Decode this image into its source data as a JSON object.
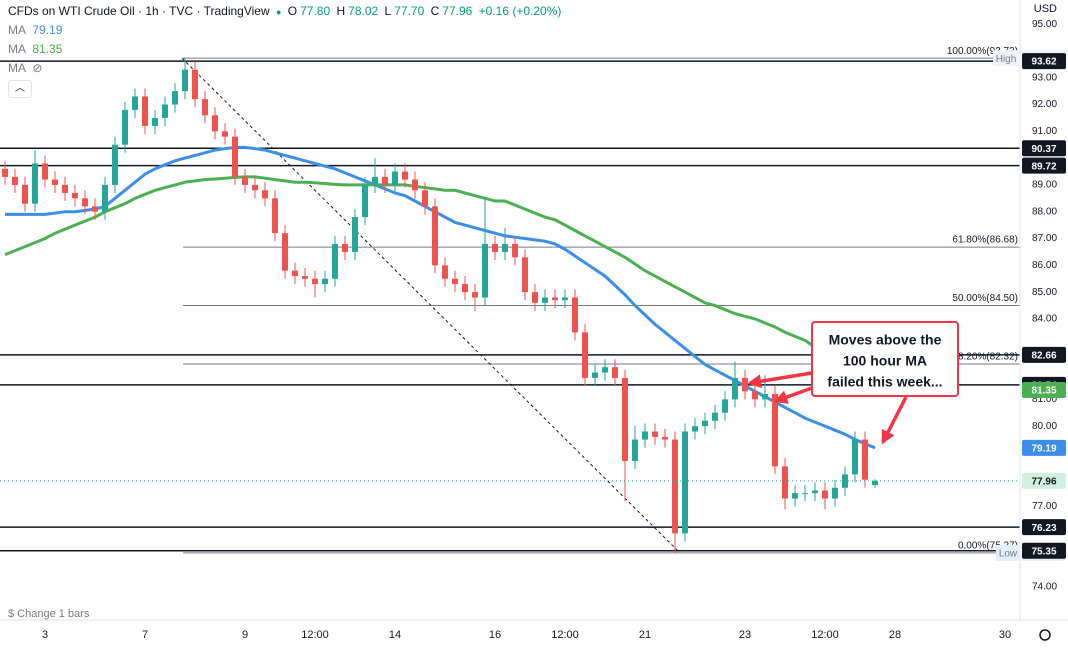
{
  "header": {
    "title": "CFDs on WTI Crude Oil · 1h · TVC · TradingView",
    "o_label": "O",
    "o": "77.80",
    "h_label": "H",
    "h": "78.02",
    "l_label": "L",
    "l": "77.70",
    "c_label": "C",
    "c": "77.96",
    "change": "+0.16 (+0.20%)"
  },
  "currency": "USD",
  "footer": "$ Change 1 bars",
  "chart_data": {
    "type": "candlestick",
    "categories": [
      null,
      null,
      null,
      null,
      "3",
      null,
      null,
      null,
      null,
      null,
      null,
      null,
      null,
      null,
      "7",
      null,
      null,
      null,
      null,
      null,
      null,
      null,
      null,
      null,
      "9",
      null,
      null,
      null,
      null,
      null,
      null,
      "12:00",
      null,
      null,
      null,
      null,
      null,
      null,
      null,
      "14",
      null,
      null,
      null,
      null,
      null,
      null,
      null,
      null,
      null,
      "16",
      null,
      null,
      null,
      null,
      null,
      null,
      "12:00",
      null,
      null,
      null,
      null,
      null,
      null,
      null,
      "21",
      null,
      null,
      null,
      null,
      null,
      null,
      null,
      null,
      null,
      "23",
      null,
      null,
      null,
      null,
      null,
      null,
      null,
      "12:00",
      null,
      null,
      null,
      null,
      null,
      null,
      "28",
      null,
      null,
      null,
      null,
      null,
      null,
      null,
      null,
      null,
      null,
      "30",
      null
    ],
    "open": [
      89.6,
      89.3,
      89.0,
      88.3,
      89.8,
      89.2,
      89.0,
      88.7,
      88.5,
      88.2,
      88.0,
      89.0,
      90.5,
      91.8,
      92.3,
      91.2,
      91.5,
      92.0,
      92.5,
      93.3,
      92.2,
      91.6,
      91.0,
      90.8,
      89.3,
      89.0,
      88.8,
      88.5,
      87.2,
      85.8,
      85.6,
      85.5,
      85.3,
      85.5,
      86.8,
      86.5,
      87.8,
      89.0,
      89.3,
      89.0,
      89.5,
      89.2,
      88.8,
      88.2,
      86.0,
      85.5,
      85.3,
      85.0,
      84.8,
      86.8,
      86.5,
      86.8,
      86.3,
      85.0,
      84.6,
      84.8,
      84.7,
      84.8,
      83.5,
      81.8,
      82.0,
      82.2,
      81.8,
      78.7,
      79.5,
      79.8,
      79.6,
      79.5,
      76.0,
      79.8,
      80.0,
      80.2,
      80.5,
      81.0,
      81.8,
      81.3,
      81.0,
      81.2,
      78.5,
      77.3,
      77.5,
      77.5,
      77.6,
      77.3,
      77.7,
      78.2,
      79.5,
      77.8,
      null,
      null,
      null,
      null,
      null,
      null,
      null,
      null,
      null,
      null,
      null,
      null,
      null,
      null
    ],
    "high": [
      89.9,
      89.6,
      89.3,
      90.3,
      90.1,
      89.5,
      89.3,
      89.0,
      88.8,
      88.5,
      89.3,
      90.8,
      92.1,
      92.6,
      92.6,
      91.8,
      92.3,
      92.8,
      93.73,
      93.6,
      92.5,
      91.9,
      91.3,
      91.1,
      89.6,
      89.3,
      89.1,
      88.8,
      87.5,
      86.1,
      85.9,
      85.8,
      85.8,
      87.1,
      87.1,
      88.1,
      89.3,
      90.0,
      89.6,
      89.8,
      89.8,
      89.5,
      89.1,
      88.5,
      86.3,
      85.8,
      85.6,
      85.3,
      88.5,
      87.1,
      87.4,
      87.1,
      86.6,
      85.3,
      85.1,
      85.1,
      85.1,
      85.1,
      83.8,
      82.3,
      82.5,
      82.5,
      82.1,
      80.0,
      80.1,
      80.1,
      79.9,
      79.8,
      80.1,
      80.3,
      80.5,
      80.8,
      81.3,
      82.4,
      82.1,
      81.6,
      81.9,
      81.5,
      78.8,
      77.8,
      77.8,
      77.9,
      77.9,
      78.0,
      78.5,
      79.8,
      79.8,
      78.02,
      null,
      null,
      null,
      null,
      null,
      null,
      null,
      null,
      null,
      null,
      null,
      null,
      null,
      null
    ],
    "low": [
      89.0,
      88.7,
      88.0,
      88.0,
      88.9,
      88.7,
      88.4,
      88.2,
      87.9,
      87.7,
      87.7,
      88.7,
      90.2,
      91.5,
      90.9,
      90.9,
      91.2,
      91.7,
      92.2,
      91.9,
      91.3,
      90.7,
      90.5,
      89.0,
      88.7,
      88.5,
      88.2,
      86.9,
      85.5,
      85.3,
      85.2,
      84.8,
      85.0,
      85.2,
      86.2,
      86.2,
      87.5,
      88.7,
      88.7,
      88.7,
      88.9,
      88.5,
      87.9,
      85.7,
      85.2,
      85.0,
      84.7,
      84.3,
      84.5,
      86.2,
      86.2,
      86.0,
      84.7,
      84.3,
      84.3,
      84.4,
      84.4,
      83.2,
      81.5,
      81.5,
      81.7,
      81.5,
      77.2,
      78.4,
      79.2,
      79.3,
      79.2,
      75.27,
      75.7,
      79.5,
      79.7,
      79.9,
      80.2,
      80.7,
      81.0,
      80.7,
      80.7,
      78.2,
      76.9,
      77.0,
      77.2,
      77.2,
      76.9,
      77.0,
      77.4,
      77.9,
      77.7,
      77.7,
      null,
      null,
      null,
      null,
      null,
      null,
      null,
      null,
      null,
      null,
      null,
      null,
      null,
      null
    ],
    "close": [
      89.3,
      89.0,
      88.3,
      89.8,
      89.2,
      89.0,
      88.7,
      88.5,
      88.2,
      88.0,
      89.0,
      90.5,
      91.8,
      92.3,
      91.2,
      91.5,
      92.0,
      92.5,
      93.3,
      92.2,
      91.6,
      91.0,
      90.8,
      89.3,
      89.0,
      88.8,
      88.5,
      87.2,
      85.8,
      85.6,
      85.5,
      85.3,
      85.5,
      86.8,
      86.5,
      87.8,
      89.0,
      89.3,
      89.0,
      89.5,
      89.2,
      88.8,
      88.2,
      86.0,
      85.5,
      85.3,
      85.0,
      84.8,
      86.8,
      86.5,
      86.8,
      86.3,
      85.0,
      84.6,
      84.8,
      84.7,
      84.8,
      83.5,
      81.8,
      82.0,
      82.2,
      81.8,
      78.7,
      79.5,
      79.8,
      79.6,
      79.5,
      76.0,
      79.8,
      80.0,
      80.2,
      80.5,
      81.0,
      81.8,
      81.3,
      81.0,
      81.2,
      78.5,
      77.3,
      77.5,
      77.5,
      77.6,
      77.3,
      77.7,
      78.2,
      79.5,
      78.0,
      77.96,
      null,
      null,
      null,
      null,
      null,
      null,
      null,
      null,
      null,
      null,
      null,
      null,
      null,
      null
    ],
    "up_color": "#26a69a",
    "down_color": "#ef5350",
    "series": [
      {
        "name": "MA",
        "color": "#3d8ee8",
        "values": [
          87.9,
          87.9,
          87.9,
          87.9,
          87.9,
          87.95,
          88.0,
          88.0,
          88.05,
          88.1,
          88.2,
          88.5,
          88.8,
          89.1,
          89.4,
          89.6,
          89.75,
          89.9,
          90.0,
          90.1,
          90.2,
          90.3,
          90.35,
          90.4,
          90.4,
          90.35,
          90.3,
          90.2,
          90.1,
          90.0,
          89.9,
          89.8,
          89.7,
          89.6,
          89.45,
          89.3,
          89.15,
          89.0,
          88.85,
          88.7,
          88.6,
          88.4,
          88.2,
          88.0,
          87.8,
          87.6,
          87.5,
          87.4,
          87.3,
          87.2,
          87.1,
          87.05,
          87.0,
          86.95,
          86.9,
          86.8,
          86.6,
          86.35,
          86.1,
          85.85,
          85.6,
          85.25,
          84.9,
          84.5,
          84.15,
          83.8,
          83.5,
          83.2,
          82.9,
          82.6,
          82.3,
          82.1,
          81.9,
          81.7,
          81.5,
          81.3,
          81.1,
          80.9,
          80.7,
          80.5,
          80.3,
          80.15,
          80.0,
          79.85,
          79.7,
          79.5,
          79.35,
          79.19,
          null,
          null,
          null,
          null,
          null,
          null,
          null,
          null,
          null,
          null,
          null,
          null,
          null,
          null
        ]
      },
      {
        "name": "MA",
        "color": "#4caf50",
        "values": [
          86.4,
          86.55,
          86.7,
          86.85,
          87.0,
          87.2,
          87.35,
          87.5,
          87.65,
          87.8,
          88.0,
          88.15,
          88.3,
          88.5,
          88.65,
          88.8,
          88.9,
          89.0,
          89.1,
          89.15,
          89.2,
          89.22,
          89.25,
          89.28,
          89.3,
          89.3,
          89.25,
          89.2,
          89.15,
          89.1,
          89.1,
          89.08,
          89.05,
          89.02,
          89.0,
          89.0,
          89.0,
          89.0,
          89.0,
          89.0,
          89.0,
          88.95,
          88.9,
          88.85,
          88.8,
          88.8,
          88.7,
          88.6,
          88.5,
          88.4,
          88.4,
          88.25,
          88.1,
          87.95,
          87.8,
          87.7,
          87.5,
          87.3,
          87.1,
          86.9,
          86.7,
          86.5,
          86.3,
          86.05,
          85.8,
          85.6,
          85.4,
          85.2,
          85.0,
          84.8,
          84.6,
          84.5,
          84.35,
          84.2,
          84.1,
          84.0,
          83.85,
          83.7,
          83.5,
          83.35,
          83.2,
          82.95,
          82.7,
          82.45,
          82.2,
          81.9,
          81.6,
          81.35,
          null,
          null,
          null,
          null,
          null,
          null,
          null,
          null,
          null,
          null,
          null,
          null,
          null,
          null
        ]
      }
    ],
    "hidden_indicator": "MA",
    "ylim": [
      73.14,
      95.9
    ],
    "yticks": [
      {
        "value": 95,
        "label": "95.00"
      },
      {
        "value": 93,
        "label": "93.00"
      },
      {
        "value": 92,
        "label": "92.00"
      },
      {
        "value": 91,
        "label": "91.00"
      },
      {
        "value": 89,
        "label": "89.00"
      },
      {
        "value": 88,
        "label": "88.00"
      },
      {
        "value": 87,
        "label": "87.00"
      },
      {
        "value": 86,
        "label": "86.00"
      },
      {
        "value": 85,
        "label": "85.00"
      },
      {
        "value": 84,
        "label": "84.00"
      },
      {
        "value": 81,
        "label": "81.00"
      },
      {
        "value": 80,
        "label": "80.00"
      },
      {
        "value": 77,
        "label": "77.00"
      },
      {
        "value": 74,
        "label": "74.00"
      }
    ],
    "levels": [
      93.62,
      90.37,
      89.72,
      82.66,
      81.54,
      76.23,
      75.35
    ],
    "fib_levels": [
      {
        "value": 93.73,
        "label": "100.00%(93.73)"
      },
      {
        "value": 86.68,
        "label": "61.80%(86.68)"
      },
      {
        "value": 84.5,
        "label": "50.00%(84.50)"
      },
      {
        "value": 82.32,
        "label": "38.20%(82.32)"
      },
      {
        "value": 75.27,
        "label": "0.00%(75.27)"
      }
    ],
    "high_label": "High",
    "low_label": "Low",
    "annotation": [
      "Moves above the",
      "100 hour MA",
      "failed this week..."
    ]
  }
}
